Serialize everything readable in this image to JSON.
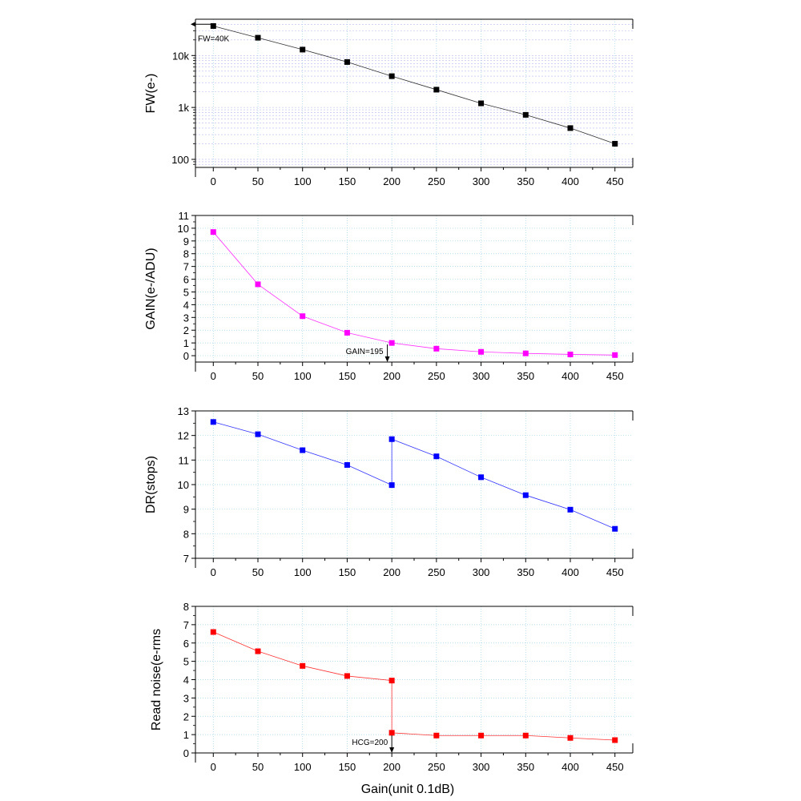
{
  "chart_data": [
    {
      "type": "line",
      "ylabel": "FW(e-)",
      "yscale": "log",
      "ylim": [
        70,
        50000
      ],
      "xlim": [
        -20,
        470
      ],
      "xticks": [
        0,
        50,
        100,
        150,
        200,
        250,
        300,
        350,
        400,
        450
      ],
      "xtick_labels": [
        "0",
        "50",
        "100",
        "150",
        "200",
        "250",
        "300",
        "350",
        "400",
        "450"
      ],
      "yticks": [
        100,
        1000,
        10000
      ],
      "ytick_labels": [
        "100",
        "1k",
        "10k"
      ],
      "x": [
        0,
        50,
        100,
        150,
        200,
        250,
        300,
        350,
        400,
        450
      ],
      "series": [
        {
          "values": [
            37000,
            22000,
            13000,
            7500,
            4000,
            2200,
            1200,
            720,
            400,
            200
          ],
          "color": "#000000"
        }
      ],
      "annotations": [
        {
          "text": "FW=40K",
          "x": 0,
          "y": 40000
        }
      ],
      "grid": true
    },
    {
      "type": "line",
      "ylabel": "GAIN(e-/ADU)",
      "ylim": [
        -0.5,
        11
      ],
      "xlim": [
        -20,
        470
      ],
      "xticks": [
        0,
        50,
        100,
        150,
        200,
        250,
        300,
        350,
        400,
        450
      ],
      "xtick_labels": [
        "0",
        "50",
        "100",
        "150",
        "200",
        "250",
        "300",
        "350",
        "400",
        "450"
      ],
      "yticks": [
        0,
        1,
        2,
        3,
        4,
        5,
        6,
        7,
        8,
        9,
        10,
        11
      ],
      "ytick_labels": [
        "0",
        "1",
        "2",
        "3",
        "4",
        "5",
        "6",
        "7",
        "8",
        "9",
        "10",
        "11"
      ],
      "x": [
        0,
        50,
        100,
        150,
        200,
        250,
        300,
        350,
        400,
        450
      ],
      "series": [
        {
          "values": [
            9.7,
            5.6,
            3.1,
            1.8,
            1.0,
            0.55,
            0.3,
            0.18,
            0.1,
            0.05
          ],
          "color": "#ff00ff"
        }
      ],
      "annotations": [
        {
          "text": "GAIN=195",
          "x": 195,
          "y": -0.5
        }
      ],
      "grid": true
    },
    {
      "type": "line",
      "ylabel": "DR(stops)",
      "ylim": [
        7,
        13
      ],
      "xlim": [
        -20,
        470
      ],
      "xticks": [
        0,
        50,
        100,
        150,
        200,
        250,
        300,
        350,
        400,
        450
      ],
      "xtick_labels": [
        "0",
        "50",
        "100",
        "150",
        "200",
        "250",
        "300",
        "350",
        "400",
        "450"
      ],
      "yticks": [
        7,
        8,
        9,
        10,
        11,
        12,
        13
      ],
      "ytick_labels": [
        "7",
        "8",
        "9",
        "10",
        "11",
        "12",
        "13"
      ],
      "x": [
        0,
        50,
        100,
        150,
        200,
        200,
        250,
        300,
        350,
        400,
        450
      ],
      "series": [
        {
          "values": [
            12.55,
            12.05,
            11.4,
            10.8,
            9.98,
            11.85,
            11.15,
            10.3,
            9.57,
            8.98,
            8.2
          ],
          "color": "#0000ff"
        }
      ],
      "grid": true
    },
    {
      "type": "line",
      "ylabel": "Read noise(e-rms",
      "xlabel": "Gain(unit 0.1dB)",
      "ylim": [
        0,
        8
      ],
      "xlim": [
        -20,
        470
      ],
      "xticks": [
        0,
        50,
        100,
        150,
        200,
        250,
        300,
        350,
        400,
        450
      ],
      "xtick_labels": [
        "0",
        "50",
        "100",
        "150",
        "200",
        "250",
        "300",
        "350",
        "400",
        "450"
      ],
      "yticks": [
        0,
        1,
        2,
        3,
        4,
        5,
        6,
        7,
        8
      ],
      "ytick_labels": [
        "0",
        "1",
        "2",
        "3",
        "4",
        "5",
        "6",
        "7",
        "8"
      ],
      "x": [
        0,
        50,
        100,
        150,
        200,
        200,
        250,
        300,
        350,
        400,
        450
      ],
      "series": [
        {
          "values": [
            6.6,
            5.55,
            4.75,
            4.2,
            3.95,
            1.1,
            0.95,
            0.95,
            0.95,
            0.82,
            0.7
          ],
          "color": "#ff0000"
        }
      ],
      "annotations": [
        {
          "text": "HCG=200",
          "x": 200,
          "y": 0
        }
      ],
      "grid": true
    }
  ]
}
